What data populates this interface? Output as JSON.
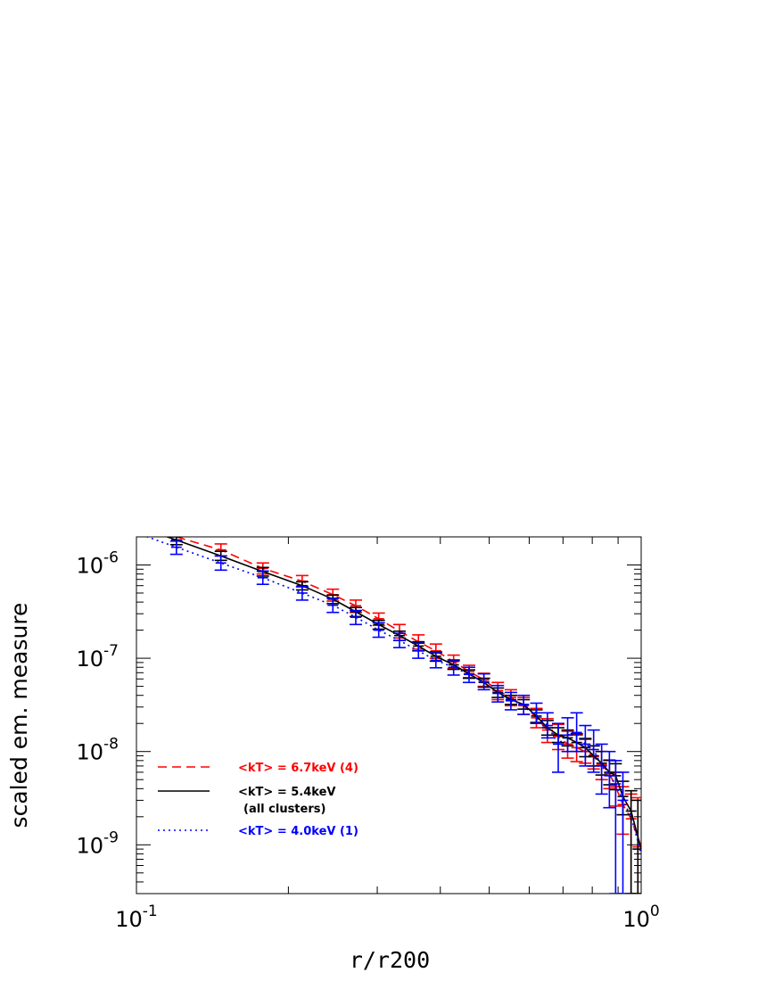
{
  "chart_data": {
    "type": "line",
    "title": "",
    "xlabel": "r/r200",
    "ylabel": "scaled em. measure",
    "xscale": "log",
    "yscale": "log",
    "xlim": [
      0.1,
      1.0
    ],
    "ylim": [
      3e-10,
      2e-06
    ],
    "x_tick_labels": [
      {
        "value": 0.1,
        "base": "10",
        "exp": "-1"
      },
      {
        "value": 1.0,
        "base": "10",
        "exp": "0"
      }
    ],
    "y_tick_labels": [
      {
        "value": 1e-06,
        "base": "10",
        "exp": "-6"
      },
      {
        "value": 1e-07,
        "base": "10",
        "exp": "-7"
      },
      {
        "value": 1e-08,
        "base": "10",
        "exp": "-8"
      },
      {
        "value": 1e-09,
        "base": "10",
        "exp": "-9"
      }
    ],
    "legend_position": "bottom-left",
    "legend": [
      {
        "text": "<kT> = 6.7keV (4)",
        "subtext": "",
        "color": "#ff0000",
        "dash": "dashed"
      },
      {
        "text": "<kT> = 5.4keV",
        "subtext": "(all clusters)",
        "color": "#000000",
        "dash": "solid"
      },
      {
        "text": "<kT> = 4.0keV (1)",
        "subtext": "",
        "color": "#0000ff",
        "dash": "dotted"
      }
    ],
    "series": [
      {
        "key": "hot",
        "color": "#ff0000",
        "dash": "dashed",
        "line": [
          [
            0.1,
            2.9e-06
          ],
          [
            0.12,
            2e-06
          ],
          [
            0.147,
            1.45e-06
          ],
          [
            0.178,
            9.2e-07
          ],
          [
            0.213,
            6.7e-07
          ],
          [
            0.245,
            4.8e-07
          ],
          [
            0.272,
            3.65e-07
          ],
          [
            0.302,
            2.65e-07
          ],
          [
            0.332,
            1.95e-07
          ],
          [
            0.362,
            1.5e-07
          ],
          [
            0.392,
            1.2e-07
          ],
          [
            0.425,
            9.2e-08
          ],
          [
            0.456,
            7.2e-08
          ],
          [
            0.488,
            5.9e-08
          ],
          [
            0.52,
            4.5e-08
          ],
          [
            0.552,
            3.8e-08
          ],
          [
            0.585,
            3.1e-08
          ],
          [
            0.62,
            2.3e-08
          ],
          [
            0.652,
            1.7e-08
          ],
          [
            0.685,
            1.45e-08
          ],
          [
            0.715,
            1.2e-08
          ],
          [
            0.745,
            1.1e-08
          ],
          [
            0.775,
            1e-08
          ],
          [
            0.805,
            8.8e-09
          ],
          [
            0.835,
            7.2e-09
          ],
          [
            0.865,
            5.8e-09
          ],
          [
            0.89,
            4.2e-09
          ],
          [
            0.92,
            2.7e-09
          ],
          [
            0.955,
            1.9e-09
          ],
          [
            1.0,
            9.5e-10
          ]
        ],
        "points": [
          {
            "x": 0.147,
            "y": 1.45e-06,
            "lo": 1.25e-06,
            "hi": 1.68e-06
          },
          {
            "x": 0.178,
            "y": 9.2e-07,
            "lo": 8e-07,
            "hi": 1.05e-06
          },
          {
            "x": 0.213,
            "y": 6.7e-07,
            "lo": 5.8e-07,
            "hi": 7.7e-07
          },
          {
            "x": 0.245,
            "y": 4.8e-07,
            "lo": 4.1e-07,
            "hi": 5.5e-07
          },
          {
            "x": 0.272,
            "y": 3.65e-07,
            "lo": 3.1e-07,
            "hi": 4.2e-07
          },
          {
            "x": 0.302,
            "y": 2.65e-07,
            "lo": 2.25e-07,
            "hi": 3.05e-07
          },
          {
            "x": 0.332,
            "y": 1.95e-07,
            "lo": 1.65e-07,
            "hi": 2.3e-07
          },
          {
            "x": 0.362,
            "y": 1.5e-07,
            "lo": 1.25e-07,
            "hi": 1.78e-07
          },
          {
            "x": 0.392,
            "y": 1.2e-07,
            "lo": 1e-07,
            "hi": 1.42e-07
          },
          {
            "x": 0.425,
            "y": 9.2e-08,
            "lo": 7.8e-08,
            "hi": 1.08e-07
          },
          {
            "x": 0.456,
            "y": 7.2e-08,
            "lo": 6.2e-08,
            "hi": 8.4e-08
          },
          {
            "x": 0.488,
            "y": 5.9e-08,
            "lo": 5e-08,
            "hi": 6.9e-08
          },
          {
            "x": 0.52,
            "y": 4.5e-08,
            "lo": 3.6e-08,
            "hi": 5.5e-08
          },
          {
            "x": 0.552,
            "y": 3.8e-08,
            "lo": 3.1e-08,
            "hi": 4.6e-08
          },
          {
            "x": 0.585,
            "y": 3.1e-08,
            "lo": 2.5e-08,
            "hi": 3.8e-08
          },
          {
            "x": 0.62,
            "y": 2.3e-08,
            "lo": 1.8e-08,
            "hi": 2.9e-08
          },
          {
            "x": 0.652,
            "y": 1.7e-08,
            "lo": 1.25e-08,
            "hi": 2.25e-08
          },
          {
            "x": 0.685,
            "y": 1.45e-08,
            "lo": 1.05e-08,
            "hi": 1.95e-08
          },
          {
            "x": 0.715,
            "y": 1.2e-08,
            "lo": 8.5e-09,
            "hi": 1.65e-08
          },
          {
            "x": 0.745,
            "y": 1.1e-08,
            "lo": 7.8e-09,
            "hi": 1.5e-08
          },
          {
            "x": 0.775,
            "y": 1e-08,
            "lo": 7.5e-09,
            "hi": 1.35e-08
          },
          {
            "x": 0.805,
            "y": 8.8e-09,
            "lo": 6.5e-09,
            "hi": 1.15e-08
          },
          {
            "x": 0.835,
            "y": 7.2e-09,
            "lo": 5e-09,
            "hi": 1e-08
          },
          {
            "x": 0.865,
            "y": 5.8e-09,
            "lo": 4e-09,
            "hi": 8e-09
          },
          {
            "x": 0.89,
            "y": 4.2e-09,
            "lo": 2.6e-09,
            "hi": 6e-09
          },
          {
            "x": 0.92,
            "y": 2.7e-09,
            "lo": 1.3e-09,
            "hi": 4.2e-09
          },
          {
            "x": 0.955,
            "y": 1.9e-09,
            "lo": 3e-10,
            "hi": 3.5e-09
          },
          {
            "x": 0.985,
            "y": 9.5e-10,
            "lo": 3e-10,
            "hi": 3.2e-09
          }
        ]
      },
      {
        "key": "all",
        "color": "#000000",
        "dash": "solid",
        "line": [
          [
            0.1,
            2.6e-06
          ],
          [
            0.12,
            1.85e-06
          ],
          [
            0.147,
            1.25e-06
          ],
          [
            0.178,
            8.5e-07
          ],
          [
            0.213,
            6e-07
          ],
          [
            0.245,
            4.3e-07
          ],
          [
            0.272,
            3.15e-07
          ],
          [
            0.302,
            2.3e-07
          ],
          [
            0.332,
            1.75e-07
          ],
          [
            0.362,
            1.35e-07
          ],
          [
            0.392,
            1.05e-07
          ],
          [
            0.425,
            8.5e-08
          ],
          [
            0.456,
            6.8e-08
          ],
          [
            0.488,
            5.5e-08
          ],
          [
            0.52,
            4.3e-08
          ],
          [
            0.552,
            3.6e-08
          ],
          [
            0.585,
            3.2e-08
          ],
          [
            0.62,
            2.4e-08
          ],
          [
            0.652,
            1.8e-08
          ],
          [
            0.685,
            1.5e-08
          ],
          [
            0.715,
            1.4e-08
          ],
          [
            0.745,
            1.25e-08
          ],
          [
            0.775,
            1.1e-08
          ],
          [
            0.805,
            9e-09
          ],
          [
            0.835,
            7.5e-09
          ],
          [
            0.865,
            6e-09
          ],
          [
            0.89,
            5.5e-09
          ],
          [
            0.92,
            3.3e-09
          ],
          [
            0.955,
            2.3e-09
          ],
          [
            1.0,
            9e-10
          ]
        ],
        "points": [
          {
            "x": 0.12,
            "y": 1.85e-06,
            "lo": 1.65e-06,
            "hi": 2.05e-06
          },
          {
            "x": 0.147,
            "y": 1.25e-06,
            "lo": 1.12e-06,
            "hi": 1.4e-06
          },
          {
            "x": 0.178,
            "y": 8.5e-07,
            "lo": 7.6e-07,
            "hi": 9.4e-07
          },
          {
            "x": 0.213,
            "y": 6e-07,
            "lo": 5.4e-07,
            "hi": 6.6e-07
          },
          {
            "x": 0.245,
            "y": 4.3e-07,
            "lo": 3.85e-07,
            "hi": 4.75e-07
          },
          {
            "x": 0.272,
            "y": 3.15e-07,
            "lo": 2.8e-07,
            "hi": 3.5e-07
          },
          {
            "x": 0.302,
            "y": 2.3e-07,
            "lo": 2.05e-07,
            "hi": 2.55e-07
          },
          {
            "x": 0.332,
            "y": 1.75e-07,
            "lo": 1.55e-07,
            "hi": 1.95e-07
          },
          {
            "x": 0.362,
            "y": 1.35e-07,
            "lo": 1.2e-07,
            "hi": 1.5e-07
          },
          {
            "x": 0.392,
            "y": 1.05e-07,
            "lo": 9.3e-08,
            "hi": 1.17e-07
          },
          {
            "x": 0.425,
            "y": 8.5e-08,
            "lo": 7.6e-08,
            "hi": 9.4e-08
          },
          {
            "x": 0.456,
            "y": 6.8e-08,
            "lo": 6.1e-08,
            "hi": 7.5e-08
          },
          {
            "x": 0.488,
            "y": 5.5e-08,
            "lo": 4.9e-08,
            "hi": 6.1e-08
          },
          {
            "x": 0.52,
            "y": 4.3e-08,
            "lo": 3.8e-08,
            "hi": 4.8e-08
          },
          {
            "x": 0.552,
            "y": 3.6e-08,
            "lo": 3.2e-08,
            "hi": 4e-08
          },
          {
            "x": 0.585,
            "y": 3.2e-08,
            "lo": 2.85e-08,
            "hi": 3.6e-08
          },
          {
            "x": 0.62,
            "y": 2.4e-08,
            "lo": 2.05e-08,
            "hi": 2.8e-08
          },
          {
            "x": 0.652,
            "y": 1.8e-08,
            "lo": 1.5e-08,
            "hi": 2.15e-08
          },
          {
            "x": 0.685,
            "y": 1.5e-08,
            "lo": 1.25e-08,
            "hi": 1.8e-08
          },
          {
            "x": 0.715,
            "y": 1.4e-08,
            "lo": 1.15e-08,
            "hi": 1.7e-08
          },
          {
            "x": 0.745,
            "y": 1.25e-08,
            "lo": 1e-08,
            "hi": 1.55e-08
          },
          {
            "x": 0.775,
            "y": 1.1e-08,
            "lo": 8.8e-09,
            "hi": 1.38e-08
          },
          {
            "x": 0.805,
            "y": 9e-09,
            "lo": 7e-09,
            "hi": 1.15e-08
          },
          {
            "x": 0.835,
            "y": 7.5e-09,
            "lo": 5.6e-09,
            "hi": 1e-08
          },
          {
            "x": 0.865,
            "y": 6e-09,
            "lo": 4.4e-09,
            "hi": 8.1e-09
          },
          {
            "x": 0.89,
            "y": 5.5e-09,
            "lo": 3.9e-09,
            "hi": 7.4e-09
          },
          {
            "x": 0.92,
            "y": 3.3e-09,
            "lo": 2.1e-09,
            "hi": 4.8e-09
          },
          {
            "x": 0.955,
            "y": 2.3e-09,
            "lo": 3e-10,
            "hi": 3.8e-09
          },
          {
            "x": 0.985,
            "y": 9e-10,
            "lo": 3e-10,
            "hi": 3e-09
          }
        ]
      },
      {
        "key": "cool",
        "color": "#0000ff",
        "dash": "dotted",
        "line": [
          [
            0.1,
            2.2e-06
          ],
          [
            0.12,
            1.55e-06
          ],
          [
            0.147,
            1.05e-06
          ],
          [
            0.178,
            7.3e-07
          ],
          [
            0.213,
            5e-07
          ],
          [
            0.245,
            3.7e-07
          ],
          [
            0.272,
            2.75e-07
          ],
          [
            0.302,
            2e-07
          ],
          [
            0.332,
            1.55e-07
          ],
          [
            0.362,
            1.2e-07
          ],
          [
            0.392,
            9.5e-08
          ],
          [
            0.425,
            8e-08
          ],
          [
            0.456,
            6.7e-08
          ],
          [
            0.488,
            5.6e-08
          ],
          [
            0.52,
            4.2e-08
          ],
          [
            0.552,
            3.5e-08
          ],
          [
            0.585,
            3.2e-08
          ],
          [
            0.62,
            2.6e-08
          ],
          [
            0.652,
            1.9e-08
          ],
          [
            0.685,
            1.2e-08
          ],
          [
            0.715,
            1.5e-08
          ],
          [
            0.745,
            1.6e-08
          ],
          [
            0.775,
            1.2e-08
          ],
          [
            0.805,
            1.05e-08
          ],
          [
            0.835,
            7e-09
          ],
          [
            0.865,
            5.5e-09
          ],
          [
            0.89,
            4.5e-09
          ],
          [
            0.92,
            3e-09
          ],
          [
            0.955,
            2e-09
          ],
          [
            1.0,
            8e-10
          ]
        ],
        "points": [
          {
            "x": 0.12,
            "y": 1.55e-06,
            "lo": 1.3e-06,
            "hi": 1.8e-06
          },
          {
            "x": 0.147,
            "y": 1.05e-06,
            "lo": 8.8e-07,
            "hi": 1.25e-06
          },
          {
            "x": 0.178,
            "y": 7.3e-07,
            "lo": 6.2e-07,
            "hi": 8.6e-07
          },
          {
            "x": 0.213,
            "y": 5e-07,
            "lo": 4.2e-07,
            "hi": 5.9e-07
          },
          {
            "x": 0.245,
            "y": 3.7e-07,
            "lo": 3.1e-07,
            "hi": 4.4e-07
          },
          {
            "x": 0.272,
            "y": 2.75e-07,
            "lo": 2.3e-07,
            "hi": 3.25e-07
          },
          {
            "x": 0.302,
            "y": 2e-07,
            "lo": 1.68e-07,
            "hi": 2.4e-07
          },
          {
            "x": 0.332,
            "y": 1.55e-07,
            "lo": 1.3e-07,
            "hi": 1.85e-07
          },
          {
            "x": 0.362,
            "y": 1.2e-07,
            "lo": 1e-07,
            "hi": 1.45e-07
          },
          {
            "x": 0.392,
            "y": 9.5e-08,
            "lo": 7.9e-08,
            "hi": 1.14e-07
          },
          {
            "x": 0.425,
            "y": 8e-08,
            "lo": 6.6e-08,
            "hi": 9.6e-08
          },
          {
            "x": 0.456,
            "y": 6.7e-08,
            "lo": 5.5e-08,
            "hi": 8e-08
          },
          {
            "x": 0.488,
            "y": 5.6e-08,
            "lo": 4.6e-08,
            "hi": 6.8e-08
          },
          {
            "x": 0.52,
            "y": 4.2e-08,
            "lo": 3.4e-08,
            "hi": 5.1e-08
          },
          {
            "x": 0.552,
            "y": 3.5e-08,
            "lo": 2.8e-08,
            "hi": 4.3e-08
          },
          {
            "x": 0.585,
            "y": 3.2e-08,
            "lo": 2.5e-08,
            "hi": 4e-08
          },
          {
            "x": 0.62,
            "y": 2.6e-08,
            "lo": 2e-08,
            "hi": 3.3e-08
          },
          {
            "x": 0.652,
            "y": 1.9e-08,
            "lo": 1.4e-08,
            "hi": 2.6e-08
          },
          {
            "x": 0.685,
            "y": 1.2e-08,
            "lo": 6e-09,
            "hi": 2e-08
          },
          {
            "x": 0.715,
            "y": 1.5e-08,
            "lo": 1e-08,
            "hi": 2.3e-08
          },
          {
            "x": 0.745,
            "y": 1.6e-08,
            "lo": 1e-08,
            "hi": 2.6e-08
          },
          {
            "x": 0.775,
            "y": 1.2e-08,
            "lo": 7e-09,
            "hi": 1.9e-08
          },
          {
            "x": 0.805,
            "y": 1.05e-08,
            "lo": 6e-09,
            "hi": 1.7e-08
          },
          {
            "x": 0.835,
            "y": 7e-09,
            "lo": 3.5e-09,
            "hi": 1.2e-08
          },
          {
            "x": 0.865,
            "y": 5.5e-09,
            "lo": 2.5e-09,
            "hi": 1e-08
          },
          {
            "x": 0.89,
            "y": 4.5e-09,
            "lo": 3e-10,
            "hi": 8e-09
          },
          {
            "x": 0.92,
            "y": 3e-09,
            "lo": 3e-10,
            "hi": 6e-09
          }
        ]
      }
    ]
  }
}
